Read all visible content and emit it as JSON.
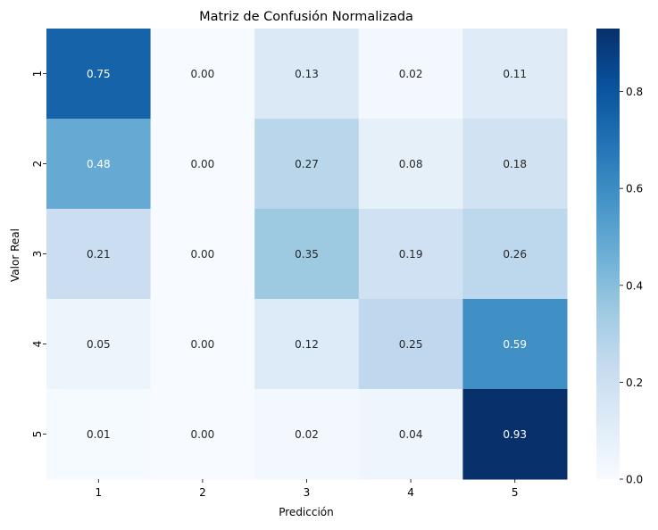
{
  "chart_data": {
    "type": "heatmap",
    "title": "Matriz de Confusión Normalizada",
    "xlabel": "Predicción",
    "ylabel": "Valor Real",
    "x_categories": [
      "1",
      "2",
      "3",
      "4",
      "5"
    ],
    "y_categories": [
      "1",
      "2",
      "3",
      "4",
      "5"
    ],
    "values": [
      [
        0.75,
        0.0,
        0.13,
        0.02,
        0.11
      ],
      [
        0.48,
        0.0,
        0.27,
        0.08,
        0.18
      ],
      [
        0.21,
        0.0,
        0.35,
        0.19,
        0.26
      ],
      [
        0.05,
        0.0,
        0.12,
        0.25,
        0.59
      ],
      [
        0.01,
        0.0,
        0.02,
        0.04,
        0.93
      ]
    ],
    "cell_labels": [
      [
        "0.75",
        "0.00",
        "0.13",
        "0.02",
        "0.11"
      ],
      [
        "0.48",
        "0.00",
        "0.27",
        "0.08",
        "0.18"
      ],
      [
        "0.21",
        "0.00",
        "0.35",
        "0.19",
        "0.26"
      ],
      [
        "0.05",
        "0.00",
        "0.12",
        "0.25",
        "0.59"
      ],
      [
        "0.01",
        "0.00",
        "0.02",
        "0.04",
        "0.93"
      ]
    ],
    "colormap": "Blues",
    "colorbar": {
      "range": [
        0.0,
        0.93
      ],
      "ticks": [
        0.0,
        0.2,
        0.4,
        0.6,
        0.8
      ],
      "tick_labels": [
        "0.0",
        "0.2",
        "0.4",
        "0.6",
        "0.8"
      ]
    },
    "grid": false
  }
}
